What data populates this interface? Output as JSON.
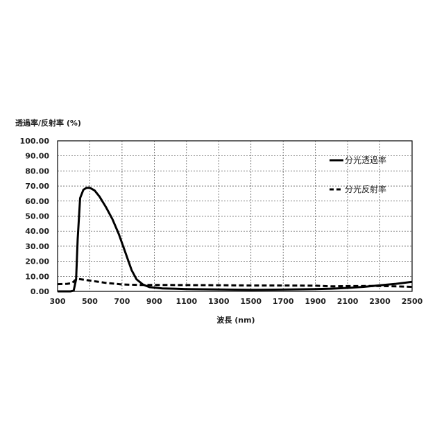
{
  "chart_data": {
    "type": "line",
    "title": "",
    "ylabel": "透過率/反射率 (%)",
    "xlabel": "波長 (nm)",
    "xlim": [
      300,
      2500
    ],
    "ylim": [
      0,
      100
    ],
    "x_ticks": [
      300,
      500,
      700,
      900,
      1100,
      1300,
      1500,
      1700,
      1900,
      2100,
      2300,
      2500
    ],
    "y_ticks": [
      "0.00",
      "10.00",
      "20.00",
      "30.00",
      "40.00",
      "50.00",
      "60.00",
      "70.00",
      "80.00",
      "90.00",
      "100.00"
    ],
    "grid": true,
    "legend_position": "top-right",
    "series": [
      {
        "name": "分光透過率",
        "style": "solid",
        "points": [
          [
            300,
            0.0
          ],
          [
            380,
            0.0
          ],
          [
            400,
            0.5
          ],
          [
            415,
            8
          ],
          [
            425,
            35
          ],
          [
            440,
            62
          ],
          [
            460,
            67.5
          ],
          [
            480,
            68.8
          ],
          [
            500,
            68.8
          ],
          [
            530,
            67
          ],
          [
            560,
            63
          ],
          [
            600,
            56
          ],
          [
            640,
            48
          ],
          [
            680,
            38
          ],
          [
            720,
            26
          ],
          [
            760,
            14
          ],
          [
            790,
            8
          ],
          [
            830,
            4.5
          ],
          [
            870,
            2.8
          ],
          [
            950,
            2.0
          ],
          [
            1100,
            1.5
          ],
          [
            1300,
            1.3
          ],
          [
            1500,
            1.0
          ],
          [
            1700,
            1.2
          ],
          [
            1900,
            1.5
          ],
          [
            2000,
            1.8
          ],
          [
            2100,
            2.3
          ],
          [
            2200,
            3.0
          ],
          [
            2300,
            4.0
          ],
          [
            2400,
            5.0
          ],
          [
            2500,
            6.3
          ]
        ]
      },
      {
        "name": "分光反射率",
        "style": "dashed",
        "points": [
          [
            300,
            4.8
          ],
          [
            360,
            5.0
          ],
          [
            390,
            5.5
          ],
          [
            410,
            7.5
          ],
          [
            430,
            8.2
          ],
          [
            460,
            7.8
          ],
          [
            500,
            7.2
          ],
          [
            550,
            6.4
          ],
          [
            600,
            5.6
          ],
          [
            700,
            4.6
          ],
          [
            800,
            4.3
          ],
          [
            900,
            4.3
          ],
          [
            1100,
            4.2
          ],
          [
            1300,
            4.1
          ],
          [
            1500,
            3.9
          ],
          [
            1700,
            3.9
          ],
          [
            1900,
            3.8
          ],
          [
            2000,
            3.3
          ],
          [
            2100,
            3.5
          ],
          [
            2300,
            3.6
          ],
          [
            2400,
            3.3
          ],
          [
            2500,
            3.0
          ]
        ]
      }
    ]
  }
}
